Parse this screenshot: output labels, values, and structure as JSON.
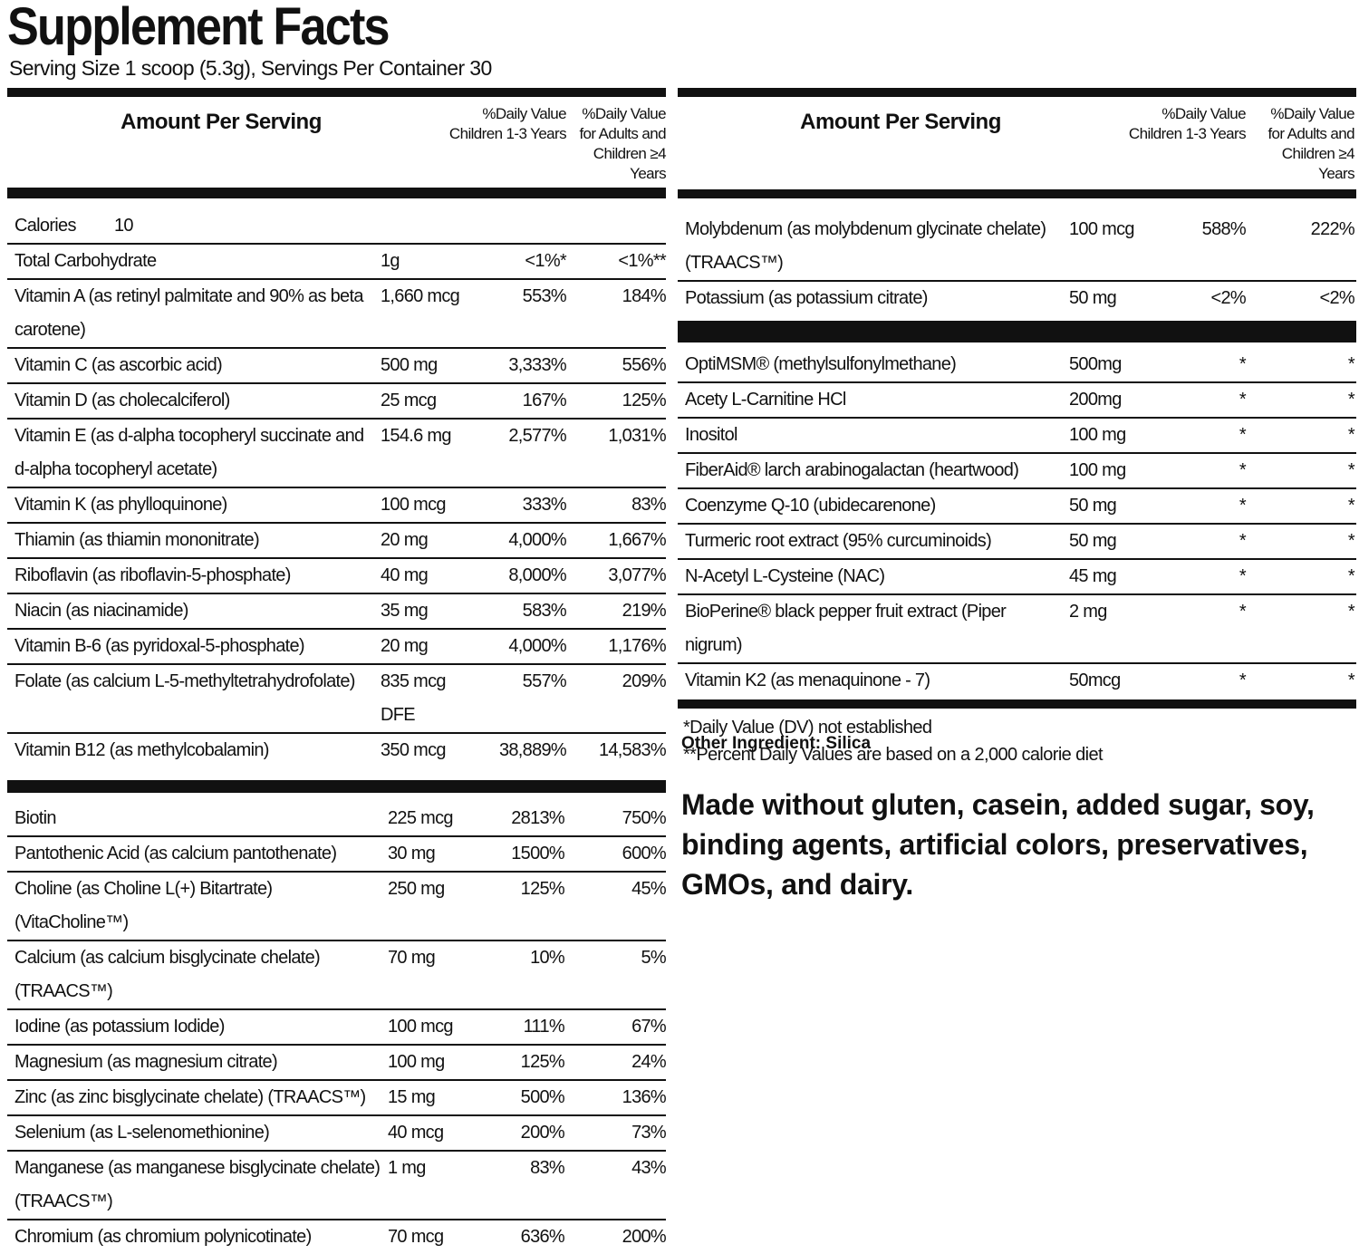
{
  "title": "Supplement Facts",
  "serving": "Serving Size 1 scoop (5.3g), Servings Per Container 30",
  "header": {
    "amount": "Amount Per Serving",
    "dv_children": "%Daily Value Children 1-3 Years",
    "dv_adults": "%Daily Value for Adults and Children ≥4 Years"
  },
  "calories": {
    "label": "Calories",
    "value": "10"
  },
  "left_section_1": [
    [
      "Total Carbohydrate",
      "1g",
      "<1%*",
      "<1%**"
    ],
    [
      "Vitamin A (as retinyl palmitate and 90% as beta carotene)",
      "1,660 mcg",
      "553%",
      "184%"
    ],
    [
      "Vitamin C (as ascorbic acid)",
      "500 mg",
      "3,333%",
      "556%"
    ],
    [
      "Vitamin D (as cholecalciferol)",
      "25 mcg",
      "167%",
      "125%"
    ],
    [
      "Vitamin E (as d-alpha tocopheryl succinate and d-alpha tocopheryl acetate)",
      "154.6 mg",
      "2,577%",
      "1,031%"
    ],
    [
      "Vitamin K (as phylloquinone)",
      "100 mcg",
      "333%",
      "83%"
    ],
    [
      "Thiamin (as thiamin mononitrate)",
      "20 mg",
      "4,000%",
      "1,667%"
    ],
    [
      "Riboflavin (as riboflavin-5-phosphate)",
      "40 mg",
      "8,000%",
      "3,077%"
    ],
    [
      "Niacin (as niacinamide)",
      "35 mg",
      "583%",
      "219%"
    ],
    [
      "Vitamin B-6 (as pyridoxal-5-phosphate)",
      "20 mg",
      "4,000%",
      "1,176%"
    ],
    [
      "Folate (as calcium L-5-methyltetrahydrofolate)",
      "835 mcg DFE",
      "557%",
      "209%"
    ],
    [
      "Vitamin B12 (as methylcobalamin)",
      "350 mcg",
      "38,889%",
      "14,583%"
    ]
  ],
  "left_section_2": [
    [
      "Biotin",
      "225 mcg",
      "2813%",
      "750%"
    ],
    [
      "Pantothenic Acid (as calcium pantothenate)",
      "30 mg",
      "1500%",
      "600%"
    ],
    [
      "Choline (as Choline L(+) Bitartrate) (VitaCholine™)",
      "250 mg",
      "125%",
      "45%"
    ],
    [
      "Calcium (as calcium bisglycinate chelate) (TRAACS™)",
      "70 mg",
      "10%",
      "5%"
    ],
    [
      "Iodine (as potassium Iodide)",
      "100 mcg",
      "111%",
      "67%"
    ],
    [
      "Magnesium (as magnesium citrate)",
      "100 mg",
      "125%",
      "24%"
    ],
    [
      "Zinc (as zinc bisglycinate chelate) (TRAACS™)",
      "15 mg",
      "500%",
      "136%"
    ],
    [
      "Selenium (as L-selenomethionine)",
      "40 mcg",
      "200%",
      "73%"
    ],
    [
      "Manganese (as manganese bisglycinate chelate) (TRAACS™)",
      "1 mg",
      "83%",
      "43%"
    ],
    [
      "Chromium (as chromium polynicotinate)",
      "70 mcg",
      "636%",
      "200%"
    ]
  ],
  "right_section_1": [
    [
      "Molybdenum (as molybdenum glycinate chelate) (TRAACS™)",
      "100 mcg",
      "588%",
      "222%"
    ],
    [
      "Potassium (as potassium citrate)",
      "50 mg",
      "<2%",
      "<2%"
    ]
  ],
  "right_section_2": [
    [
      "OptiMSM® (methylsulfonylmethane)",
      "500mg",
      "*",
      "*"
    ],
    [
      "Acety L-Carnitine HCl",
      "200mg",
      "*",
      "*"
    ],
    [
      "Inositol",
      "100 mg",
      "*",
      "*"
    ],
    [
      "FiberAid® larch arabinogalactan (heartwood)",
      "100 mg",
      "*",
      "*"
    ],
    [
      "Coenzyme Q-10 (ubidecarenone)",
      "50 mg",
      "*",
      "*"
    ],
    [
      "Turmeric root extract (95% curcuminoids)",
      "50 mg",
      "*",
      "*"
    ],
    [
      "N-Acetyl L-Cysteine (NAC)",
      "45 mg",
      "*",
      "*"
    ],
    [
      "BioPerine® black pepper fruit extract (Piper nigrum)",
      "2 mg",
      "*",
      "*"
    ],
    [
      "Vitamin K2 (as menaquinone - 7)",
      "50mcg",
      "*",
      "*"
    ]
  ],
  "footnotes": [
    "*Daily Value (DV) not established",
    "**Percent Daily Values are based on a 2,000 calorie diet"
  ],
  "other_ingredient": "Other Ingredient: Silica",
  "made_without": "Made without gluten, casein, added sugar, soy, binding agents, artificial colors, preservatives, GMOs, and dairy."
}
